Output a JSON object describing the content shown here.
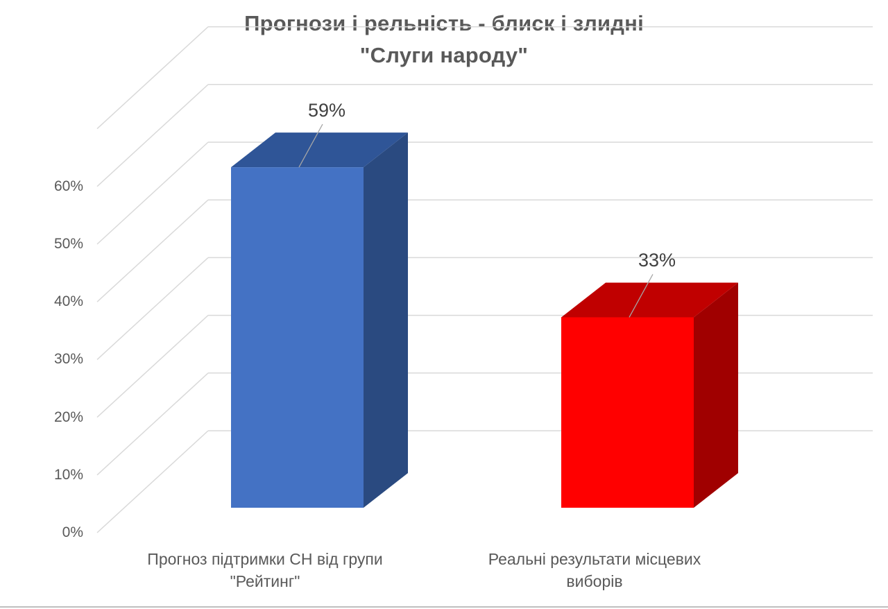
{
  "chart_data": {
    "type": "bar",
    "title_lines": [
      "Прогнози і рельність - блиск і злидні",
      "\"Слуги народу\""
    ],
    "categories": [
      [
        "Прогноз підтримки СН від групи",
        "\"Рейтинг\""
      ],
      [
        "Реальні результати місцевих",
        "виборів"
      ]
    ],
    "values": [
      59,
      33
    ],
    "data_labels": [
      "59%",
      "33%"
    ],
    "y_ticks": [
      "0%",
      "10%",
      "20%",
      "30%",
      "40%",
      "50%",
      "60%"
    ],
    "ylim": [
      0,
      70
    ],
    "grid": true,
    "three_d": true,
    "colors": {
      "bar1_front": "#4472c4",
      "bar1_top": "#2f5597",
      "bar1_side": "#2a4a80",
      "bar2_front": "#ff0000",
      "bar2_top": "#c00000",
      "bar2_side": "#a00000",
      "grid": "#d9d9d9",
      "text": "#595959"
    }
  }
}
